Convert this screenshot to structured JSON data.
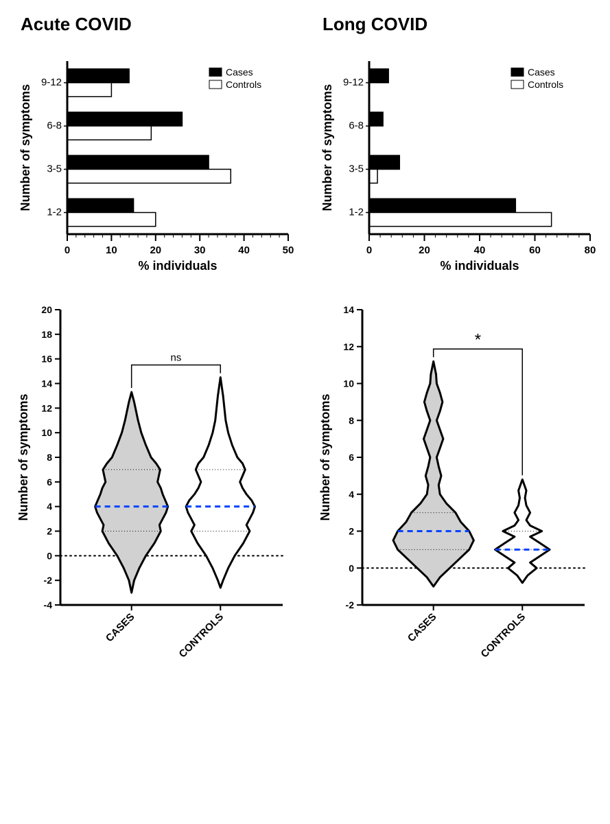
{
  "titles": {
    "left": "Acute COVID",
    "right": "Long COVID"
  },
  "legend": {
    "cases": "Cases",
    "controls": "Controls"
  },
  "bar_left": {
    "type": "bar",
    "orientation": "horizontal",
    "ylabel": "Number of symptoms",
    "xlabel": "% individuals",
    "categories": [
      "1-2",
      "3-5",
      "6-8",
      "9-12"
    ],
    "cases": [
      15,
      32,
      26,
      14
    ],
    "controls": [
      20,
      37,
      19,
      10
    ],
    "xlim": [
      0,
      50
    ],
    "xtick_step": 10,
    "colors": {
      "cases": "#000000",
      "controls": "#ffffff"
    },
    "stroke": "#000000",
    "bg": "#ffffff",
    "label_fontsize": 18,
    "tick_fontsize": 15,
    "axis_width": 3
  },
  "bar_right": {
    "type": "bar",
    "orientation": "horizontal",
    "ylabel": "Number of symptoms",
    "xlabel": "% individuals",
    "categories": [
      "1-2",
      "3-5",
      "6-8",
      "9-12"
    ],
    "cases": [
      53,
      11,
      5,
      7
    ],
    "controls": [
      66,
      3,
      0,
      0
    ],
    "xlim": [
      0,
      80
    ],
    "xtick_step": 20,
    "colors": {
      "cases": "#000000",
      "controls": "#ffffff"
    },
    "stroke": "#000000",
    "bg": "#ffffff",
    "label_fontsize": 18,
    "tick_fontsize": 15,
    "axis_width": 3
  },
  "violin_left": {
    "type": "violin",
    "ylabel": "Number of symptoms",
    "groups": [
      "CASES",
      "CONTROLS"
    ],
    "ylim": [
      -4,
      20
    ],
    "ytick_step": 2,
    "zero_line": true,
    "significance": "ns",
    "colors": {
      "cases_fill": "#d1d1d1",
      "controls_fill": "#ffffff",
      "stroke": "#000000",
      "median": "#0042ff"
    },
    "quartiles": {
      "cases": [
        2,
        4,
        7
      ],
      "controls": [
        2,
        4,
        7
      ]
    },
    "label_fontsize": 18,
    "tick_fontsize": 14,
    "line_width": 3,
    "shapes": {
      "cases": [
        [
          -3.0,
          0.0
        ],
        [
          -2.0,
          0.04
        ],
        [
          -1.0,
          0.12
        ],
        [
          0.0,
          0.22
        ],
        [
          1.0,
          0.35
        ],
        [
          2.0,
          0.45
        ],
        [
          2.5,
          0.43
        ],
        [
          3.0,
          0.48
        ],
        [
          3.5,
          0.53
        ],
        [
          4.0,
          0.56
        ],
        [
          4.5,
          0.52
        ],
        [
          5.0,
          0.48
        ],
        [
          5.5,
          0.45
        ],
        [
          6.0,
          0.4
        ],
        [
          6.5,
          0.42
        ],
        [
          7.0,
          0.44
        ],
        [
          7.5,
          0.38
        ],
        [
          8.0,
          0.3
        ],
        [
          9.0,
          0.22
        ],
        [
          10.0,
          0.15
        ],
        [
          11.0,
          0.1
        ],
        [
          12.0,
          0.06
        ],
        [
          12.5,
          0.04
        ],
        [
          13.3,
          0.0
        ]
      ],
      "controls": [
        [
          -2.6,
          0.0
        ],
        [
          -2.0,
          0.04
        ],
        [
          -1.0,
          0.12
        ],
        [
          0.0,
          0.22
        ],
        [
          1.0,
          0.35
        ],
        [
          2.0,
          0.45
        ],
        [
          2.5,
          0.4
        ],
        [
          3.0,
          0.45
        ],
        [
          3.5,
          0.5
        ],
        [
          4.0,
          0.53
        ],
        [
          4.5,
          0.48
        ],
        [
          5.0,
          0.4
        ],
        [
          5.5,
          0.34
        ],
        [
          6.0,
          0.3
        ],
        [
          6.5,
          0.34
        ],
        [
          7.0,
          0.38
        ],
        [
          7.5,
          0.34
        ],
        [
          8.0,
          0.26
        ],
        [
          9.0,
          0.18
        ],
        [
          10.0,
          0.12
        ],
        [
          11.0,
          0.08
        ],
        [
          12.0,
          0.06
        ],
        [
          13.0,
          0.04
        ],
        [
          14.5,
          0.0
        ]
      ]
    }
  },
  "violin_right": {
    "type": "violin",
    "ylabel": "Number of symptoms",
    "groups": [
      "CASES",
      "CONTROLS"
    ],
    "ylim": [
      -2,
      14
    ],
    "ytick_step": 2,
    "zero_line": true,
    "significance": "*",
    "colors": {
      "cases_fill": "#d1d1d1",
      "controls_fill": "#ffffff",
      "stroke": "#000000",
      "median": "#0042ff"
    },
    "quartiles": {
      "cases": [
        1,
        2,
        3
      ],
      "controls": [
        1,
        1,
        2
      ]
    },
    "label_fontsize": 18,
    "tick_fontsize": 14,
    "line_width": 3,
    "shapes": {
      "cases": [
        [
          -1.0,
          0.0
        ],
        [
          -0.5,
          0.1
        ],
        [
          0.0,
          0.25
        ],
        [
          0.5,
          0.4
        ],
        [
          1.0,
          0.55
        ],
        [
          1.5,
          0.62
        ],
        [
          2.0,
          0.55
        ],
        [
          2.5,
          0.42
        ],
        [
          3.0,
          0.34
        ],
        [
          3.5,
          0.2
        ],
        [
          4.0,
          0.1
        ],
        [
          4.5,
          0.08
        ],
        [
          5.0,
          0.12
        ],
        [
          5.5,
          0.08
        ],
        [
          6.0,
          0.05
        ],
        [
          6.5,
          0.1
        ],
        [
          7.0,
          0.15
        ],
        [
          7.5,
          0.1
        ],
        [
          8.0,
          0.05
        ],
        [
          8.5,
          0.1
        ],
        [
          9.0,
          0.14
        ],
        [
          9.5,
          0.1
        ],
        [
          10.0,
          0.05
        ],
        [
          10.5,
          0.04
        ],
        [
          11.2,
          0.0
        ]
      ],
      "controls": [
        [
          -0.8,
          0.0
        ],
        [
          -0.4,
          0.08
        ],
        [
          0.0,
          0.22
        ],
        [
          0.3,
          0.12
        ],
        [
          0.6,
          0.25
        ],
        [
          1.0,
          0.42
        ],
        [
          1.4,
          0.25
        ],
        [
          1.7,
          0.12
        ],
        [
          2.0,
          0.3
        ],
        [
          2.3,
          0.12
        ],
        [
          2.6,
          0.06
        ],
        [
          3.0,
          0.12
        ],
        [
          3.4,
          0.06
        ],
        [
          3.8,
          0.04
        ],
        [
          4.2,
          0.06
        ],
        [
          4.8,
          0.0
        ]
      ]
    }
  }
}
